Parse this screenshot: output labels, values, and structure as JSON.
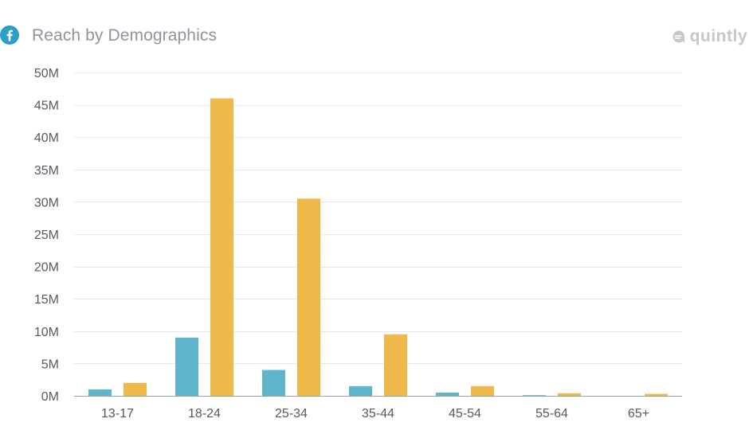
{
  "header": {
    "title": "Reach by Demographics",
    "brand": "quintly",
    "network_icon": "facebook-icon",
    "brand_icon": "quintly-logo-icon"
  },
  "colors": {
    "series_1": "#5fb5cc",
    "series_2": "#eeb84b",
    "gridline": "#e6e8ea",
    "axis": "#9aa1a7",
    "facebook": "#2a9fc7"
  },
  "chart_data": {
    "type": "bar",
    "title": "Reach by Demographics",
    "xlabel": "",
    "ylabel": "",
    "categories": [
      "13-17",
      "18-24",
      "25-34",
      "35-44",
      "45-54",
      "55-64",
      "65+"
    ],
    "series": [
      {
        "values": [
          1000000,
          9000000,
          4000000,
          1500000,
          500000,
          100000,
          0
        ]
      },
      {
        "values": [
          2000000,
          46000000,
          30500000,
          9500000,
          1500000,
          400000,
          300000
        ]
      }
    ],
    "ylim": [
      0,
      50000000
    ],
    "yticks": [
      0,
      5000000,
      10000000,
      15000000,
      20000000,
      25000000,
      30000000,
      35000000,
      40000000,
      45000000,
      50000000
    ],
    "ytick_labels": [
      "0M",
      "5M",
      "10M",
      "15M",
      "20M",
      "25M",
      "30M",
      "35M",
      "40M",
      "45M",
      "50M"
    ],
    "grid": true,
    "legend": "none"
  }
}
